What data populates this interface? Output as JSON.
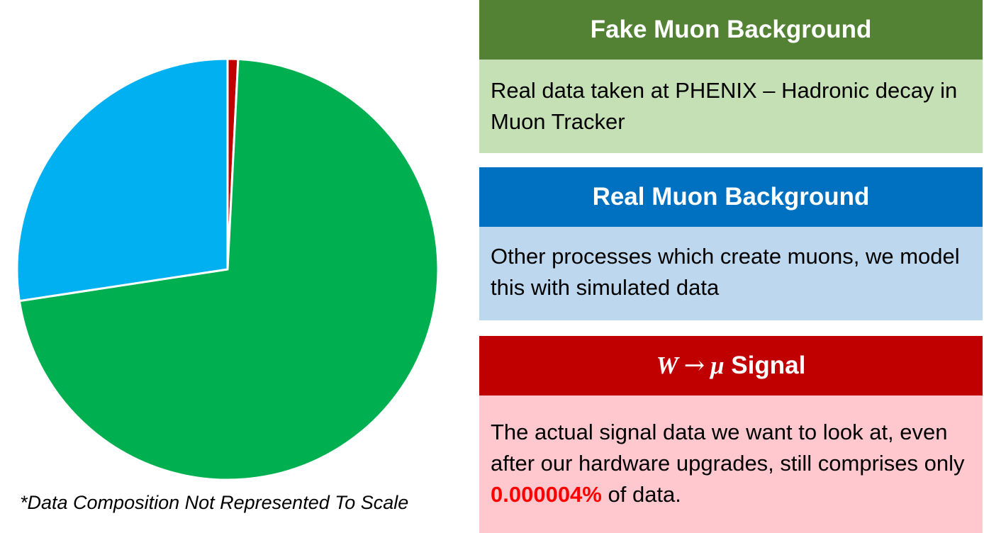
{
  "chart_data": {
    "type": "pie",
    "slices": [
      {
        "value": 0.8,
        "color": "#c00000"
      },
      {
        "value": 71.8,
        "color": "#00b050"
      },
      {
        "value": 27.4,
        "color": "#00b0f0"
      }
    ]
  },
  "footnote": "*Data Composition Not Represented To Scale",
  "panels": {
    "fake": {
      "title": "Fake Muon Background",
      "body": "Real data taken at PHENIX – Hadronic decay in Muon Tracker"
    },
    "real": {
      "title": "Real Muon Background",
      "body": "Other processes which create muons, we model this with simulated data"
    },
    "signal": {
      "title_w": "W",
      "title_arrow": "→",
      "title_mu": "μ",
      "title_rest": " Signal",
      "body_pre": "The actual signal data we want to look at, even after our hardware upgrades, still comprises only ",
      "body_highlight": "0.000004%",
      "body_post": " of data."
    }
  }
}
